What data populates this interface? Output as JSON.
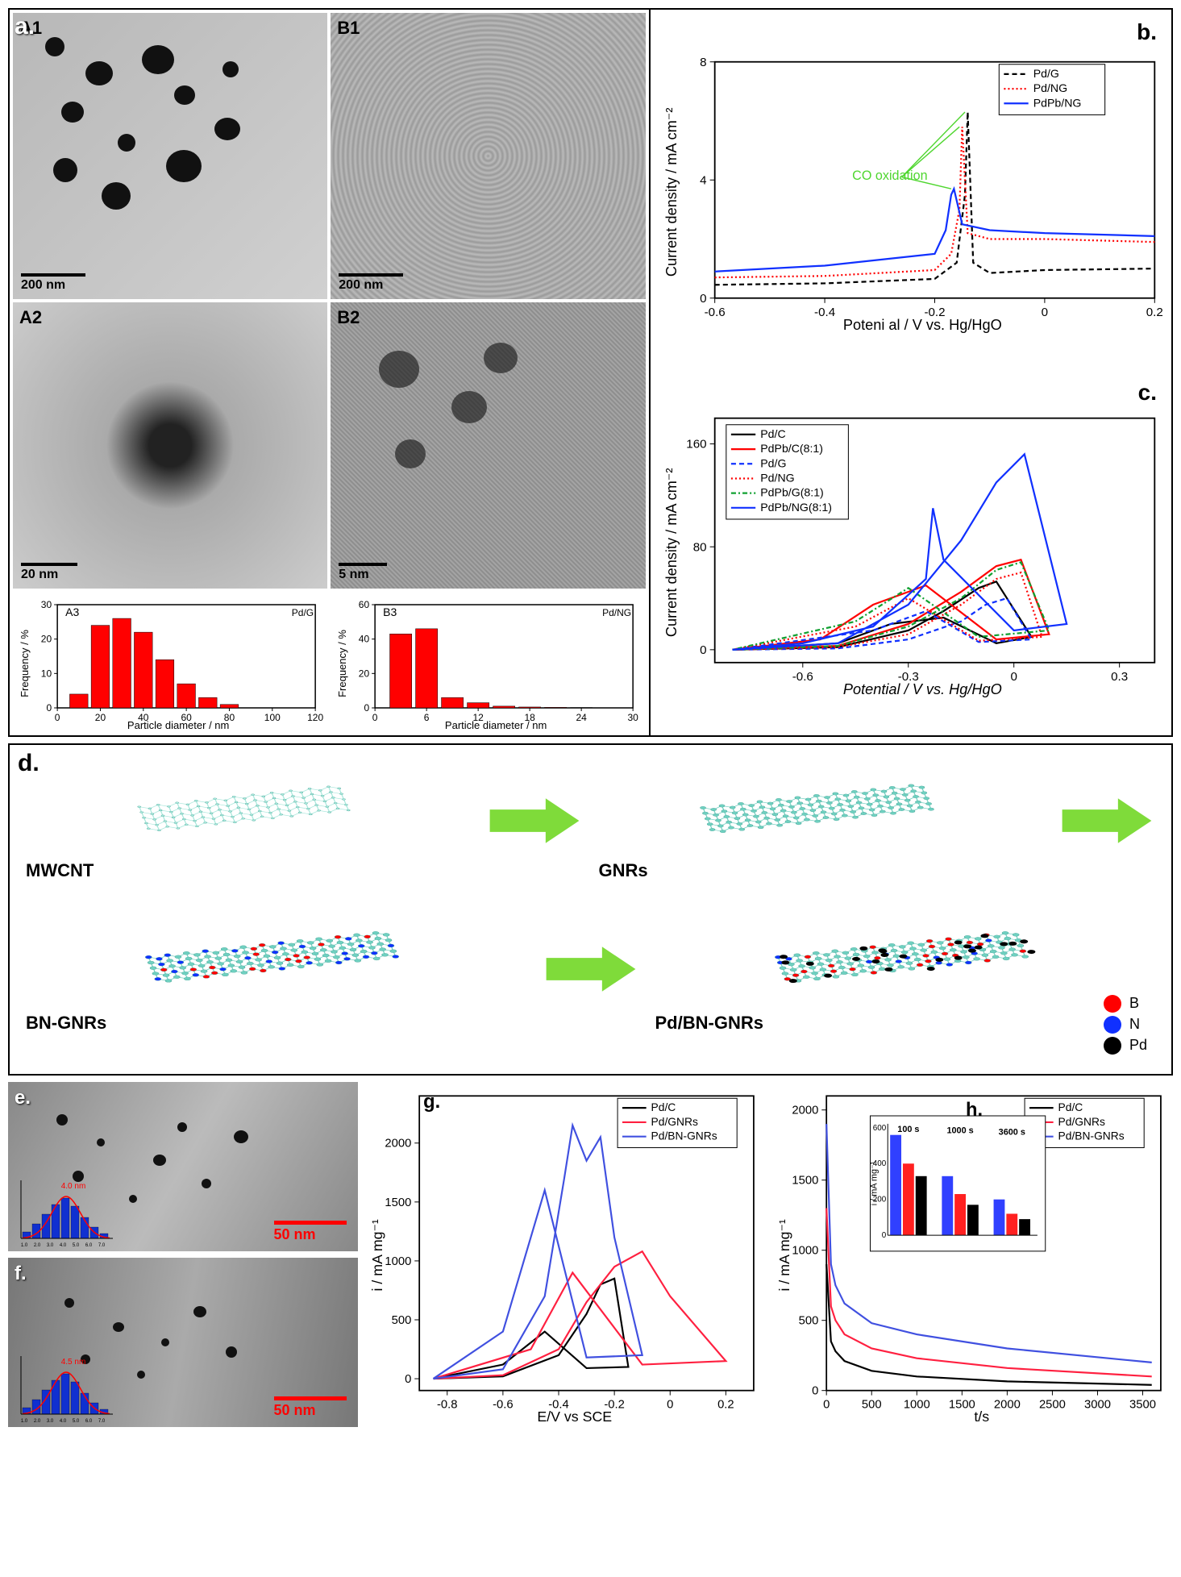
{
  "panelA": {
    "label": "a.",
    "cells": [
      {
        "id": "A1",
        "scale": "200 nm",
        "scale_w": 90
      },
      {
        "id": "B1",
        "scale": "200 nm",
        "scale_w": 90
      },
      {
        "id": "A2",
        "scale": "20 nm",
        "scale_w": 70
      },
      {
        "id": "B2",
        "scale": "5 nm",
        "scale_w": 60
      }
    ],
    "histA3": {
      "title": "A3",
      "sample": "Pd/G",
      "xlabel": "Particle diameter / nm",
      "ylabel": "Frequency / %",
      "xticks": [
        0,
        20,
        40,
        60,
        80,
        100,
        120
      ],
      "yticks": [
        0,
        10,
        20,
        30
      ],
      "bins": [
        4,
        24,
        26,
        22,
        14,
        7,
        3,
        1
      ],
      "bin_x": [
        10,
        20,
        30,
        40,
        50,
        60,
        70,
        80
      ],
      "bar_color": "#ff0000",
      "ylim": [
        0,
        30
      ],
      "xlim": [
        0,
        120
      ]
    },
    "histB3": {
      "title": "B3",
      "sample": "Pd/NG",
      "xlabel": "Particle diameter / nm",
      "ylabel": "Frequency / %",
      "xticks": [
        0,
        6,
        12,
        18,
        24,
        30
      ],
      "yticks": [
        0,
        20,
        40,
        60
      ],
      "bins": [
        43,
        46,
        6,
        3,
        1,
        0.5,
        0.3,
        0.2
      ],
      "bin_x": [
        3,
        6,
        9,
        12,
        15,
        18,
        21,
        24
      ],
      "bar_color": "#ff0000",
      "ylim": [
        0,
        60
      ],
      "xlim": [
        0,
        30
      ]
    }
  },
  "panelB": {
    "label": "b.",
    "xlabel": "Poteni al / V vs. Hg/HgO",
    "ylabel": "Current density / mA cm⁻²",
    "annotation": "CO oxidation",
    "annotation_color": "#4fd62f",
    "xlim": [
      -0.6,
      0.2
    ],
    "ylim": [
      0,
      8
    ],
    "xticks": [
      -0.6,
      -0.4,
      -0.2,
      0.0,
      0.2
    ],
    "yticks": [
      0,
      4,
      8
    ],
    "series": [
      {
        "name": "Pd/G",
        "color": "#000000",
        "dash": "6,4",
        "x": [
          -0.6,
          -0.4,
          -0.2,
          -0.16,
          -0.145,
          -0.14,
          -0.13,
          -0.1,
          0.0,
          0.2
        ],
        "y": [
          0.45,
          0.5,
          0.65,
          1.2,
          3.5,
          6.3,
          1.2,
          0.85,
          0.95,
          1.0
        ]
      },
      {
        "name": "Pd/NG",
        "color": "#ff0000",
        "dash": "2,3",
        "x": [
          -0.6,
          -0.4,
          -0.2,
          -0.17,
          -0.155,
          -0.15,
          -0.14,
          -0.1,
          0.0,
          0.2
        ],
        "y": [
          0.7,
          0.75,
          0.95,
          1.5,
          3.0,
          5.8,
          2.2,
          2.0,
          2.0,
          1.9
        ]
      },
      {
        "name": "PdPb/NG",
        "color": "#1030ff",
        "dash": "",
        "x": [
          -0.6,
          -0.4,
          -0.2,
          -0.18,
          -0.17,
          -0.165,
          -0.15,
          -0.1,
          0.0,
          0.2
        ],
        "y": [
          0.9,
          1.1,
          1.5,
          2.3,
          3.5,
          3.7,
          2.5,
          2.3,
          2.2,
          2.1
        ]
      }
    ]
  },
  "panelC": {
    "label": "c.",
    "xlabel": "Potential / V vs. Hg/HgO",
    "ylabel": "Current density / mA cm⁻²",
    "xlim": [
      -0.85,
      0.4
    ],
    "ylim": [
      -10,
      180
    ],
    "xticks": [
      -0.6,
      -0.3,
      0.0,
      0.3
    ],
    "yticks": [
      0,
      80,
      160
    ],
    "series": [
      {
        "name": "Pd/C",
        "color": "#000000",
        "dash": "",
        "x": [
          -0.8,
          -0.5,
          -0.3,
          -0.2,
          -0.1,
          -0.05,
          0.05,
          -0.05,
          -0.2,
          -0.35,
          -0.5,
          -0.8
        ],
        "y": [
          0,
          2,
          15,
          30,
          48,
          53,
          10,
          5,
          25,
          20,
          5,
          0
        ]
      },
      {
        "name": "PdPb/C(8:1)",
        "color": "#ff0000",
        "dash": "",
        "x": [
          -0.8,
          -0.5,
          -0.3,
          -0.15,
          -0.05,
          0.02,
          0.1,
          -0.05,
          -0.25,
          -0.4,
          -0.55,
          -0.8
        ],
        "y": [
          0,
          3,
          20,
          45,
          65,
          70,
          12,
          8,
          50,
          35,
          8,
          0
        ]
      },
      {
        "name": "Pd/G",
        "color": "#1030ff",
        "dash": "6,4",
        "x": [
          -0.8,
          -0.5,
          -0.3,
          -0.15,
          -0.08,
          -0.02,
          0.05,
          -0.1,
          -0.25,
          -0.4,
          -0.8
        ],
        "y": [
          0,
          1,
          8,
          22,
          35,
          40,
          8,
          6,
          30,
          15,
          0
        ]
      },
      {
        "name": "Pd/NG",
        "color": "#ff0000",
        "dash": "2,3",
        "x": [
          -0.8,
          -0.5,
          -0.3,
          -0.15,
          -0.05,
          0.02,
          0.08,
          -0.1,
          -0.3,
          -0.45,
          -0.8
        ],
        "y": [
          0,
          2,
          12,
          35,
          55,
          60,
          10,
          7,
          40,
          18,
          0
        ]
      },
      {
        "name": "PdPb/G(8:1)",
        "color": "#10a030",
        "dash": "6,3,2,3",
        "x": [
          -0.8,
          -0.5,
          -0.3,
          -0.15,
          -0.05,
          0.02,
          0.1,
          -0.1,
          -0.3,
          -0.45,
          -0.8
        ],
        "y": [
          0,
          3,
          18,
          40,
          62,
          68,
          15,
          10,
          48,
          22,
          0
        ]
      },
      {
        "name": "PdPb/NG(8:1)",
        "color": "#1030ff",
        "dash": "",
        "x": [
          -0.8,
          -0.5,
          -0.3,
          -0.15,
          -0.05,
          0.03,
          0.15,
          0.0,
          -0.2,
          -0.23,
          -0.25,
          -0.4,
          -0.6,
          -0.8
        ],
        "y": [
          0,
          5,
          35,
          85,
          130,
          152,
          20,
          15,
          70,
          110,
          55,
          18,
          5,
          0
        ]
      }
    ]
  },
  "panelD": {
    "label": "d.",
    "structs": [
      "MWCNT",
      "GNRs",
      "BN-GNRs",
      "Pd/BN-GNRs"
    ],
    "arrow_color": "#7fdb3a",
    "legend": [
      {
        "label": "B",
        "color": "#ff0000"
      },
      {
        "label": "N",
        "color": "#1030ff"
      },
      {
        "label": "Pd",
        "color": "#000000"
      }
    ]
  },
  "panelE": {
    "label": "e.",
    "scale": "50 nm",
    "inset_mean": "4.0 nm"
  },
  "panelF": {
    "label": "f.",
    "scale": "50 nm",
    "inset_mean": "4.5 nm"
  },
  "panelG": {
    "label": "g.",
    "xlabel": "E/V vs SCE",
    "ylabel": "i / mA mg⁻¹",
    "xlim": [
      -0.9,
      0.3
    ],
    "ylim": [
      -100,
      2400
    ],
    "xticks": [
      -0.8,
      -0.6,
      -0.4,
      -0.2,
      0.0,
      0.2
    ],
    "yticks": [
      0,
      500,
      1000,
      1500,
      2000
    ],
    "series": [
      {
        "name": "Pd/C",
        "color": "#000000",
        "x": [
          -0.85,
          -0.6,
          -0.4,
          -0.3,
          -0.25,
          -0.2,
          -0.15,
          -0.3,
          -0.45,
          -0.6,
          -0.85
        ],
        "y": [
          0,
          20,
          200,
          550,
          800,
          850,
          100,
          90,
          400,
          120,
          0
        ]
      },
      {
        "name": "Pd/GNRs",
        "color": "#ff2040",
        "x": [
          -0.85,
          -0.6,
          -0.4,
          -0.3,
          -0.2,
          -0.1,
          0.0,
          0.2,
          -0.1,
          -0.35,
          -0.5,
          -0.85
        ],
        "y": [
          0,
          30,
          250,
          650,
          950,
          1080,
          700,
          150,
          120,
          900,
          250,
          0
        ]
      },
      {
        "name": "Pd/BN-GNRs",
        "color": "#4050e0",
        "x": [
          -0.85,
          -0.6,
          -0.45,
          -0.38,
          -0.35,
          -0.3,
          -0.25,
          -0.2,
          -0.1,
          -0.3,
          -0.45,
          -0.6,
          -0.85
        ],
        "y": [
          0,
          80,
          700,
          1700,
          2150,
          1850,
          2050,
          1200,
          200,
          180,
          1600,
          400,
          0
        ]
      }
    ]
  },
  "panelH": {
    "label": "h.",
    "xlabel": "t/s",
    "ylabel": "i / mA mg⁻¹",
    "xlim": [
      0,
      3700
    ],
    "ylim": [
      0,
      2100
    ],
    "xticks": [
      0,
      500,
      1000,
      1500,
      2000,
      2500,
      3000,
      3500
    ],
    "yticks": [
      0,
      500,
      1000,
      1500,
      2000
    ],
    "series": [
      {
        "name": "Pd/C",
        "color": "#000000",
        "x": [
          0,
          50,
          100,
          200,
          500,
          1000,
          2000,
          3600
        ],
        "y": [
          900,
          350,
          280,
          210,
          140,
          100,
          65,
          40
        ]
      },
      {
        "name": "Pd/GNRs",
        "color": "#ff2040",
        "x": [
          0,
          50,
          100,
          200,
          500,
          1000,
          2000,
          3600
        ],
        "y": [
          1300,
          600,
          500,
          400,
          300,
          230,
          160,
          100
        ]
      },
      {
        "name": "Pd/BN-GNRs",
        "color": "#4050e0",
        "x": [
          0,
          50,
          100,
          200,
          500,
          1000,
          2000,
          3600
        ],
        "y": [
          1900,
          900,
          750,
          620,
          480,
          400,
          300,
          200
        ]
      }
    ],
    "inset": {
      "ylabel": "i / mA mg⁻¹",
      "ylim": [
        0,
        600
      ],
      "groups": [
        "100 s",
        "1000 s",
        "3600 s"
      ],
      "series": [
        {
          "color": "#3040ff",
          "values": [
            560,
            330,
            200
          ]
        },
        {
          "color": "#ff2020",
          "values": [
            400,
            230,
            120
          ]
        },
        {
          "color": "#000000",
          "values": [
            330,
            170,
            90
          ]
        }
      ]
    }
  },
  "global_style": {
    "axis_color": "#000000",
    "axis_fontsize": 15,
    "label_fontsize": 18,
    "legend_fontsize": 14,
    "line_width": 2.2
  }
}
